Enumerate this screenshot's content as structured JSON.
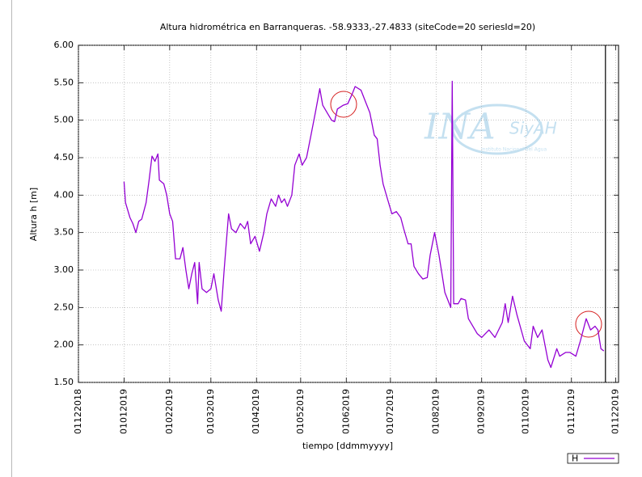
{
  "chart_data": {
    "type": "line",
    "title": "Altura hidrométrica en Barranqueras. -58.9333,-27.4833  (siteCode=20 seriesId=20)",
    "x_label": "tiempo [ddmmyyyy]",
    "y_label": "Altura h [m]",
    "x": [
      "2019-01-01",
      "2019-01-02",
      "2019-01-05",
      "2019-01-07",
      "2019-01-09",
      "2019-01-11",
      "2019-01-13",
      "2019-01-16",
      "2019-01-18",
      "2019-01-20",
      "2019-01-22",
      "2019-01-24",
      "2019-01-25",
      "2019-01-28",
      "2019-01-30",
      "2019-02-01",
      "2019-02-03",
      "2019-02-05",
      "2019-02-08",
      "2019-02-10",
      "2019-02-12",
      "2019-02-14",
      "2019-02-16",
      "2019-02-18",
      "2019-02-20",
      "2019-02-21",
      "2019-02-23",
      "2019-02-26",
      "2019-03-01",
      "2019-03-03",
      "2019-03-06",
      "2019-03-08",
      "2019-03-10",
      "2019-03-13",
      "2019-03-15",
      "2019-03-18",
      "2019-03-21",
      "2019-03-24",
      "2019-03-26",
      "2019-03-28",
      "2019-03-31",
      "2019-04-03",
      "2019-04-06",
      "2019-04-08",
      "2019-04-11",
      "2019-04-14",
      "2019-04-16",
      "2019-04-18",
      "2019-04-20",
      "2019-04-22",
      "2019-04-25",
      "2019-04-27",
      "2019-04-30",
      "2019-05-02",
      "2019-05-05",
      "2019-05-08",
      "2019-05-11",
      "2019-05-14",
      "2019-05-16",
      "2019-05-19",
      "2019-05-22",
      "2019-05-24",
      "2019-05-26",
      "2019-05-30",
      "2019-06-02",
      "2019-06-05",
      "2019-06-07",
      "2019-06-11",
      "2019-06-14",
      "2019-06-17",
      "2019-06-20",
      "2019-06-22",
      "2019-06-24",
      "2019-06-26",
      "2019-06-29",
      "2019-07-02",
      "2019-07-05",
      "2019-07-08",
      "2019-07-10",
      "2019-07-13",
      "2019-07-15",
      "2019-07-17",
      "2019-07-20",
      "2019-07-23",
      "2019-07-26",
      "2019-07-28",
      "2019-07-31",
      "2019-08-03",
      "2019-08-05",
      "2019-08-07",
      "2019-08-10",
      "2019-08-11",
      "2019-08-12",
      "2019-08-13",
      "2019-08-16",
      "2019-08-18",
      "2019-08-21",
      "2019-08-23",
      "2019-08-29",
      "2019-09-01",
      "2019-09-06",
      "2019-09-10",
      "2019-09-15",
      "2019-09-17",
      "2019-09-19",
      "2019-09-22",
      "2019-09-25",
      "2019-09-30",
      "2019-10-04",
      "2019-10-06",
      "2019-10-09",
      "2019-10-12",
      "2019-10-16",
      "2019-10-18",
      "2019-10-22",
      "2019-10-24",
      "2019-10-28",
      "2019-10-31",
      "2019-11-04",
      "2019-11-07",
      "2019-11-11",
      "2019-11-14",
      "2019-11-17",
      "2019-11-19",
      "2019-11-21",
      "2019-11-23"
    ],
    "series": [
      {
        "name": "H",
        "color": "#9400d3",
        "values": [
          4.18,
          3.9,
          3.7,
          3.62,
          3.5,
          3.65,
          3.68,
          3.9,
          4.2,
          4.52,
          4.45,
          4.55,
          4.2,
          4.15,
          4.0,
          3.75,
          3.65,
          3.15,
          3.15,
          3.3,
          3.0,
          2.75,
          2.95,
          3.1,
          2.55,
          3.1,
          2.75,
          2.7,
          2.75,
          2.95,
          2.6,
          2.45,
          3.0,
          3.75,
          3.55,
          3.5,
          3.62,
          3.55,
          3.65,
          3.35,
          3.45,
          3.25,
          3.5,
          3.75,
          3.95,
          3.85,
          4.0,
          3.9,
          3.95,
          3.85,
          4.0,
          4.4,
          4.55,
          4.4,
          4.5,
          4.8,
          5.1,
          5.42,
          5.2,
          5.1,
          5.0,
          4.98,
          5.15,
          5.2,
          5.22,
          5.35,
          5.45,
          5.4,
          5.25,
          5.1,
          4.8,
          4.75,
          4.4,
          4.15,
          3.95,
          3.75,
          3.78,
          3.7,
          3.55,
          3.35,
          3.35,
          3.05,
          2.95,
          2.88,
          2.9,
          3.2,
          3.5,
          3.2,
          2.95,
          2.7,
          2.55,
          2.5,
          5.52,
          2.55,
          2.55,
          2.62,
          2.6,
          2.35,
          2.15,
          2.1,
          2.2,
          2.1,
          2.3,
          2.55,
          2.3,
          2.65,
          2.4,
          2.05,
          1.95,
          2.25,
          2.1,
          2.2,
          1.8,
          1.7,
          1.95,
          1.85,
          1.9,
          1.9,
          1.85,
          2.05,
          2.35,
          2.2,
          2.25,
          2.2,
          1.95,
          1.92
        ]
      }
    ],
    "xlim": [
      "2018-12-01",
      "2019-12-03"
    ],
    "xticks": [
      {
        "value": "2018-12-01",
        "label": "01122018"
      },
      {
        "value": "2019-01-01",
        "label": "01012019"
      },
      {
        "value": "2019-02-01",
        "label": "01022019"
      },
      {
        "value": "2019-03-01",
        "label": "01032019"
      },
      {
        "value": "2019-04-01",
        "label": "01042019"
      },
      {
        "value": "2019-05-01",
        "label": "01052019"
      },
      {
        "value": "2019-06-01",
        "label": "01062019"
      },
      {
        "value": "2019-07-01",
        "label": "01072019"
      },
      {
        "value": "2019-08-01",
        "label": "01082019"
      },
      {
        "value": "2019-09-01",
        "label": "01092019"
      },
      {
        "value": "2019-10-01",
        "label": "01102019"
      },
      {
        "value": "2019-11-01",
        "label": "01112019"
      },
      {
        "value": "2019-12-01",
        "label": "01122019"
      }
    ],
    "ylim": [
      1.5,
      6
    ],
    "yticks": [
      {
        "value": 1.5,
        "label": "1.50"
      },
      {
        "value": 2,
        "label": "2.00"
      },
      {
        "value": 2.5,
        "label": "2.50"
      },
      {
        "value": 3,
        "label": "3.00"
      },
      {
        "value": 3.5,
        "label": "3.50"
      },
      {
        "value": 4,
        "label": "4.00"
      },
      {
        "value": 4.5,
        "label": "4.50"
      },
      {
        "value": 5,
        "label": "5.00"
      },
      {
        "value": 5.5,
        "label": "5.50"
      },
      {
        "value": 6,
        "label": "6.00"
      }
    ],
    "grid": true,
    "legend": "bottom right",
    "watermark": {
      "logo": "INA",
      "brand": "SiyAH",
      "caption": "Instituto Nacional del Agua"
    }
  }
}
